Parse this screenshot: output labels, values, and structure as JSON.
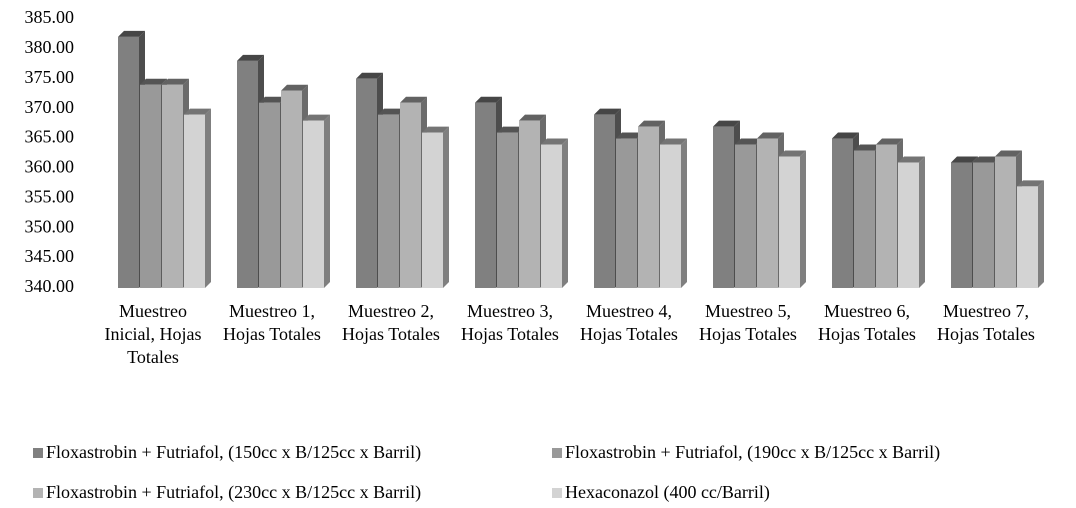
{
  "chart_data": {
    "type": "bar3d",
    "categories": [
      "Muestreo Inicial, Hojas Totales",
      "Muestreo 1, Hojas Totales",
      "Muestreo 2, Hojas Totales",
      "Muestreo 3, Hojas Totales",
      "Muestreo 4, Hojas Totales",
      "Muestreo 5, Hojas Totales",
      "Muestreo 6, Hojas Totales",
      "Muestreo 7, Hojas Totales"
    ],
    "series": [
      {
        "name": "Floxastrobin + Futriafol, (150cc x B/125cc x Barril)",
        "color": "#808080",
        "values": [
          382,
          378,
          375,
          371,
          369,
          367,
          365,
          361
        ]
      },
      {
        "name": "Floxastrobin + Futriafol, (190cc x B/125cc x Barril)",
        "color": "#999999",
        "values": [
          374,
          371,
          369,
          366,
          365,
          364,
          363,
          361
        ]
      },
      {
        "name": "Floxastrobin + Futriafol, (230cc x B/125cc x Barril)",
        "color": "#b3b3b3",
        "values": [
          374,
          373,
          371,
          368,
          367,
          365,
          364,
          362
        ]
      },
      {
        "name": "Hexaconazol (400 cc/Barril)",
        "color": "#d3d3d3",
        "values": [
          369,
          368,
          366,
          364,
          364,
          362,
          361,
          357
        ]
      }
    ],
    "ylim": [
      340,
      385
    ],
    "yticks": [
      {
        "value": 340,
        "label": "340.00"
      },
      {
        "value": 345,
        "label": "345.00"
      },
      {
        "value": 350,
        "label": "350.00"
      },
      {
        "value": 355,
        "label": "355.00"
      },
      {
        "value": 360,
        "label": "360.00"
      },
      {
        "value": 365,
        "label": "365.00"
      },
      {
        "value": 370,
        "label": "370.00"
      },
      {
        "value": 375,
        "label": "375.00"
      },
      {
        "value": 380,
        "label": "380.00"
      },
      {
        "value": 385,
        "label": "385.00"
      }
    ],
    "legend": "bottom"
  }
}
